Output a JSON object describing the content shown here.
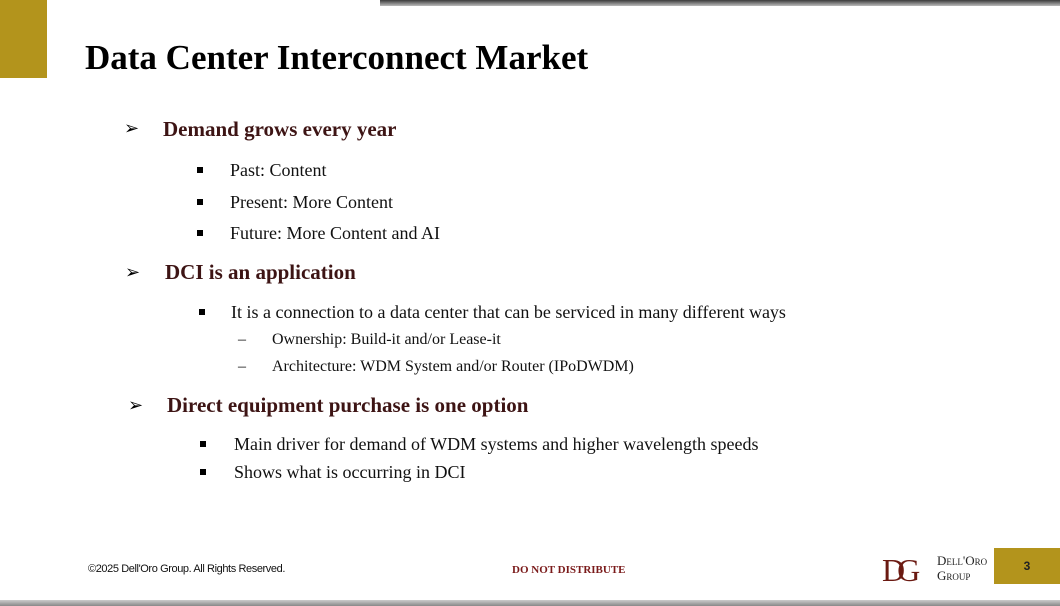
{
  "slide": {
    "title": "Data Center Interconnect Market",
    "sections": [
      {
        "heading": "Demand grows every year",
        "bullets": [
          {
            "text": "Past: Content"
          },
          {
            "text": "Present: More Content"
          },
          {
            "text": "Future: More Content and AI"
          }
        ]
      },
      {
        "heading": "DCI is an application",
        "bullets": [
          {
            "text": "It is a connection to a data center that can be serviced in many different ways",
            "sub": [
              "Ownership: Build-it and/or Lease-it",
              "Architecture: WDM System and/or Router (IPoDWDM)"
            ]
          }
        ]
      },
      {
        "heading": "Direct equipment purchase is one option",
        "bullets": [
          {
            "text": "Main driver for demand of WDM systems and higher wavelength speeds"
          },
          {
            "text": "Shows what is occurring in DCI"
          }
        ]
      }
    ],
    "arrow_glyph": "➢",
    "dash_glyph": "–"
  },
  "footer": {
    "copyright": "©2025 Dell'Oro Group. All Rights Reserved.",
    "notice": "DO NOT DISTRIBUTE",
    "logo_mark": "DG",
    "logo_line1": "Dell'Oro",
    "logo_line2": "Group",
    "page_number": "3"
  },
  "colors": {
    "accent_gold": "#b3941c",
    "heading_maroon": "#3d1414",
    "logo_red": "#6b1a12"
  }
}
